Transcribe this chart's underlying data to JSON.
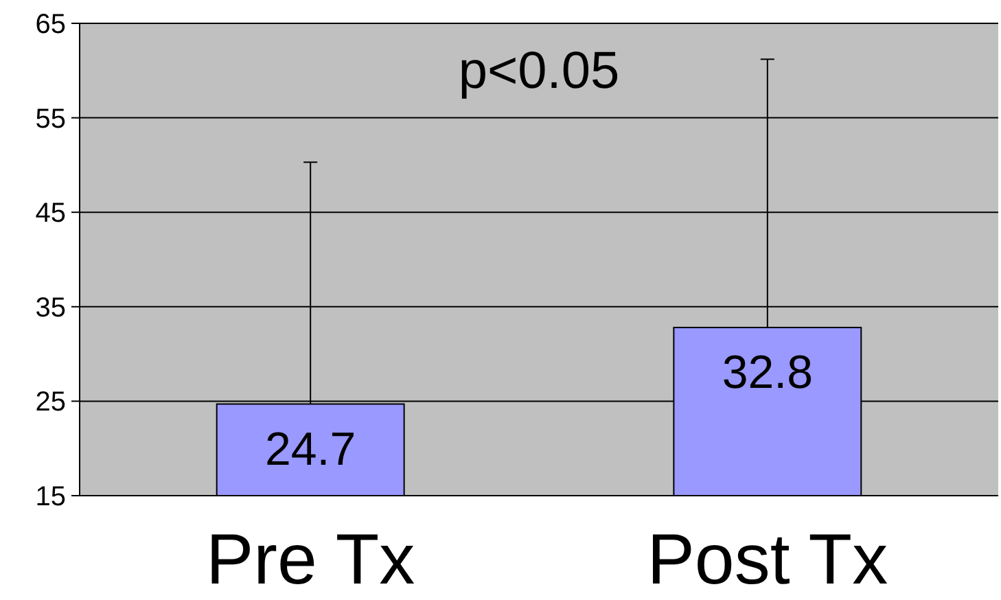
{
  "chart_data": {
    "type": "bar",
    "categories": [
      "Pre Tx",
      "Post Tx"
    ],
    "values": [
      24.7,
      32.8
    ],
    "color": "#9999ff",
    "errors": [
      [
        24.7,
        50.3
      ],
      [
        32.8,
        61.2
      ]
    ],
    "ylim": [
      15,
      65
    ],
    "yticks": [
      15,
      25,
      35,
      45,
      55,
      65
    ],
    "grid": "y",
    "data_labels": true,
    "annotations": [
      "p<0.05"
    ]
  }
}
